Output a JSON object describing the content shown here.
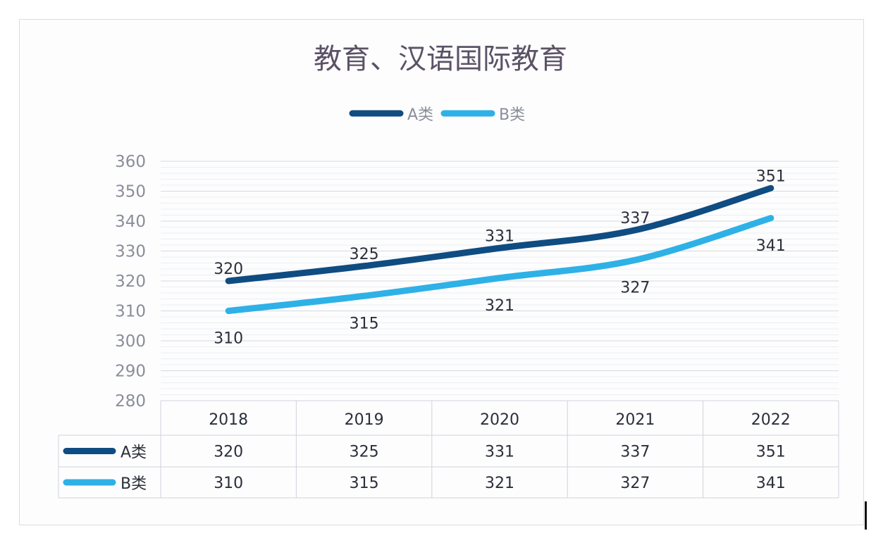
{
  "chart_data": {
    "type": "line",
    "title": "教育、汉语国际教育",
    "categories": [
      "2018",
      "2019",
      "2020",
      "2021",
      "2022"
    ],
    "series": [
      {
        "name": "A类",
        "values": [
          320,
          325,
          331,
          337,
          351
        ],
        "color": "#0f4c81"
      },
      {
        "name": "B类",
        "values": [
          310,
          315,
          321,
          327,
          341
        ],
        "color": "#2eb1e6"
      }
    ],
    "ylim": [
      280,
      360
    ],
    "yticks": [
      280,
      290,
      300,
      310,
      320,
      330,
      340,
      350,
      360
    ],
    "grid": true,
    "legend_position": "top",
    "data_table": true
  }
}
